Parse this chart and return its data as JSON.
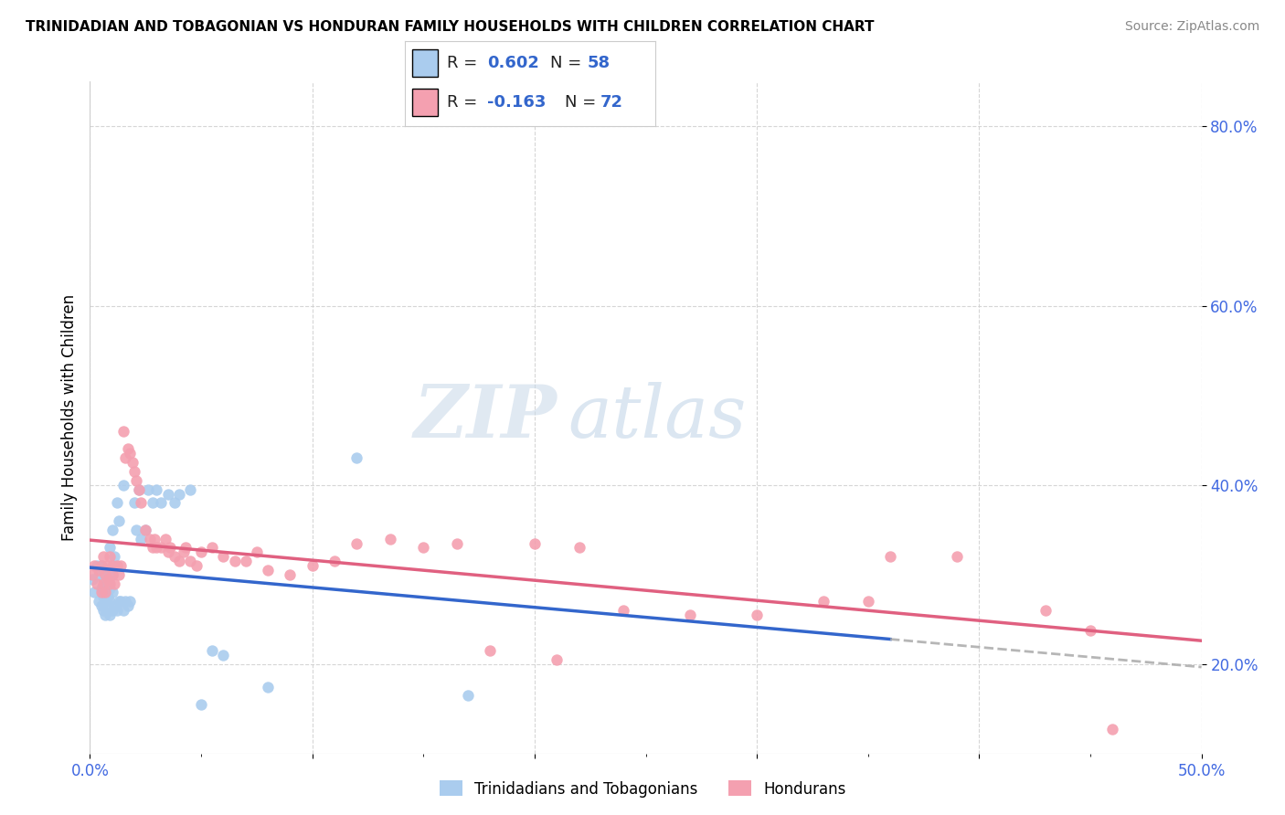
{
  "title": "TRINIDADIAN AND TOBAGONIAN VS HONDURAN FAMILY HOUSEHOLDS WITH CHILDREN CORRELATION CHART",
  "source": "Source: ZipAtlas.com",
  "ylabel": "Family Households with Children",
  "xlim": [
    0.0,
    0.5
  ],
  "ylim": [
    0.1,
    0.85
  ],
  "xticks": [
    0.0,
    0.1,
    0.2,
    0.3,
    0.4,
    0.5
  ],
  "xticklabels_ends": [
    "0.0%",
    "50.0%"
  ],
  "yticks": [
    0.2,
    0.4,
    0.6,
    0.8
  ],
  "yticklabels": [
    "20.0%",
    "40.0%",
    "60.0%",
    "80.0%"
  ],
  "blue_R": 0.602,
  "blue_N": 58,
  "pink_R": -0.163,
  "pink_N": 72,
  "blue_color": "#aaccee",
  "pink_color": "#f4a0b0",
  "blue_line_color": "#3366cc",
  "pink_line_color": "#e06080",
  "legend_label_blue": "Trinidadians and Tobagonians",
  "legend_label_pink": "Hondurans",
  "watermark_zip": "ZIP",
  "watermark_atlas": "atlas",
  "blue_scatter_x": [
    0.001,
    0.002,
    0.003,
    0.004,
    0.004,
    0.005,
    0.005,
    0.005,
    0.006,
    0.006,
    0.006,
    0.007,
    0.007,
    0.007,
    0.007,
    0.008,
    0.008,
    0.008,
    0.008,
    0.009,
    0.009,
    0.009,
    0.009,
    0.01,
    0.01,
    0.01,
    0.01,
    0.011,
    0.011,
    0.012,
    0.012,
    0.013,
    0.013,
    0.014,
    0.015,
    0.015,
    0.016,
    0.017,
    0.018,
    0.02,
    0.021,
    0.022,
    0.023,
    0.025,
    0.026,
    0.028,
    0.03,
    0.032,
    0.035,
    0.038,
    0.04,
    0.045,
    0.05,
    0.055,
    0.06,
    0.08,
    0.12,
    0.17
  ],
  "blue_scatter_y": [
    0.295,
    0.28,
    0.31,
    0.27,
    0.3,
    0.265,
    0.285,
    0.31,
    0.26,
    0.275,
    0.295,
    0.255,
    0.27,
    0.285,
    0.3,
    0.26,
    0.275,
    0.29,
    0.305,
    0.255,
    0.27,
    0.285,
    0.33,
    0.26,
    0.28,
    0.3,
    0.35,
    0.265,
    0.32,
    0.26,
    0.38,
    0.27,
    0.36,
    0.27,
    0.26,
    0.4,
    0.27,
    0.265,
    0.27,
    0.38,
    0.35,
    0.395,
    0.34,
    0.35,
    0.395,
    0.38,
    0.395,
    0.38,
    0.39,
    0.38,
    0.39,
    0.395,
    0.155,
    0.215,
    0.21,
    0.175,
    0.43,
    0.165
  ],
  "pink_scatter_x": [
    0.001,
    0.002,
    0.003,
    0.004,
    0.005,
    0.005,
    0.006,
    0.006,
    0.007,
    0.007,
    0.008,
    0.008,
    0.009,
    0.009,
    0.01,
    0.01,
    0.011,
    0.012,
    0.013,
    0.014,
    0.015,
    0.016,
    0.017,
    0.018,
    0.019,
    0.02,
    0.021,
    0.022,
    0.023,
    0.025,
    0.027,
    0.028,
    0.029,
    0.03,
    0.032,
    0.034,
    0.035,
    0.036,
    0.038,
    0.04,
    0.042,
    0.043,
    0.045,
    0.048,
    0.05,
    0.055,
    0.06,
    0.065,
    0.07,
    0.075,
    0.08,
    0.09,
    0.1,
    0.11,
    0.12,
    0.135,
    0.15,
    0.165,
    0.18,
    0.2,
    0.22,
    0.24,
    0.27,
    0.3,
    0.33,
    0.36,
    0.39,
    0.35,
    0.21,
    0.43,
    0.45,
    0.46
  ],
  "pink_scatter_y": [
    0.3,
    0.31,
    0.29,
    0.305,
    0.28,
    0.31,
    0.32,
    0.29,
    0.3,
    0.28,
    0.31,
    0.295,
    0.32,
    0.29,
    0.3,
    0.31,
    0.29,
    0.31,
    0.3,
    0.31,
    0.46,
    0.43,
    0.44,
    0.435,
    0.425,
    0.415,
    0.405,
    0.395,
    0.38,
    0.35,
    0.34,
    0.33,
    0.34,
    0.33,
    0.33,
    0.34,
    0.325,
    0.33,
    0.32,
    0.315,
    0.325,
    0.33,
    0.315,
    0.31,
    0.325,
    0.33,
    0.32,
    0.315,
    0.315,
    0.325,
    0.305,
    0.3,
    0.31,
    0.315,
    0.335,
    0.34,
    0.33,
    0.335,
    0.215,
    0.335,
    0.33,
    0.26,
    0.255,
    0.255,
    0.27,
    0.32,
    0.32,
    0.27,
    0.205,
    0.26,
    0.238,
    0.128
  ]
}
